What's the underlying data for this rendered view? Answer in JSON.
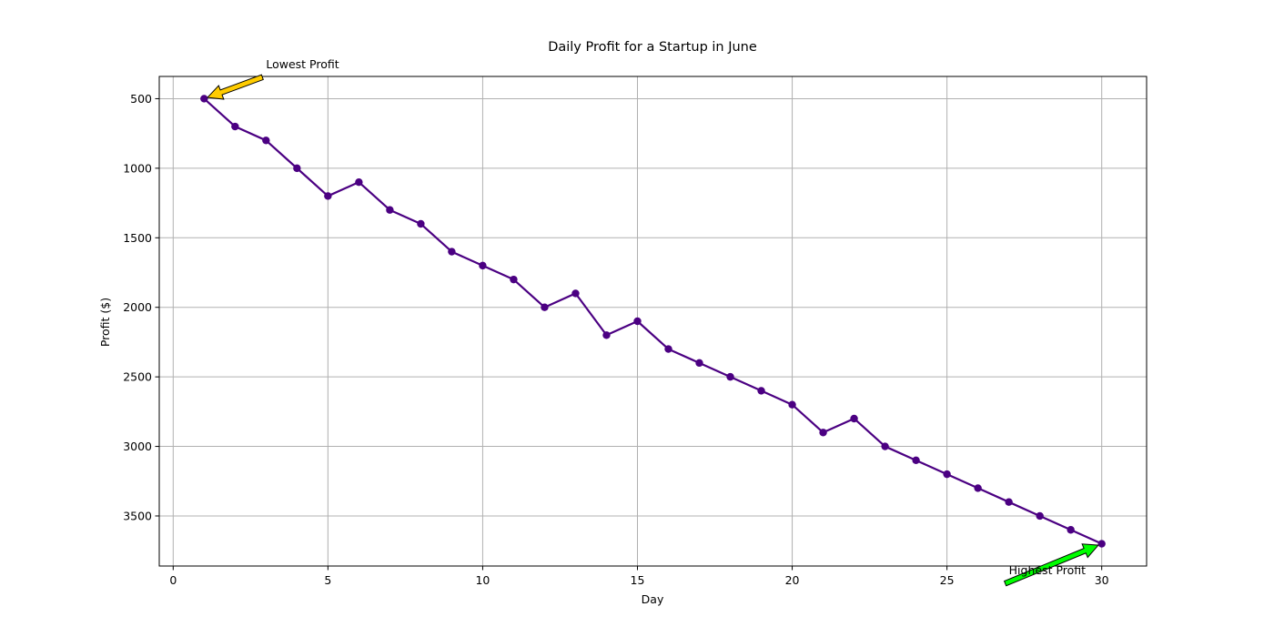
{
  "chart_data": {
    "type": "line",
    "title": "Daily Profit for a Startup in June",
    "xlabel": "Day",
    "ylabel": "Profit ($)",
    "xlim": [
      -0.45,
      31.45
    ],
    "ylim": [
      340,
      3860
    ],
    "y_inverted": true,
    "grid": true,
    "x_ticks": [
      0,
      5,
      10,
      15,
      20,
      25,
      30
    ],
    "y_ticks": [
      500,
      1000,
      1500,
      2000,
      2500,
      3000,
      3500
    ],
    "series": [
      {
        "color": "#4b0082",
        "marker": "circle",
        "x": [
          1,
          2,
          3,
          4,
          5,
          6,
          7,
          8,
          9,
          10,
          11,
          12,
          13,
          14,
          15,
          16,
          17,
          18,
          19,
          20,
          21,
          22,
          23,
          24,
          25,
          26,
          27,
          28,
          29,
          30
        ],
        "y": [
          500,
          700,
          800,
          1000,
          1200,
          1100,
          1300,
          1400,
          1600,
          1700,
          1800,
          2000,
          1900,
          2200,
          2100,
          2300,
          2400,
          2500,
          2600,
          2700,
          2900,
          2800,
          3000,
          3100,
          3200,
          3300,
          3400,
          3500,
          3600,
          3700
        ]
      }
    ],
    "annotations": [
      {
        "text": "Lowest Profit",
        "point": [
          1,
          500
        ],
        "text_pos": [
          3,
          280
        ],
        "arrow_color": "#ffcc00"
      },
      {
        "text": "Highest Profit",
        "point": [
          30,
          3700
        ],
        "text_pos": [
          27,
          3920
        ],
        "arrow_color": "#00ff00"
      }
    ]
  }
}
